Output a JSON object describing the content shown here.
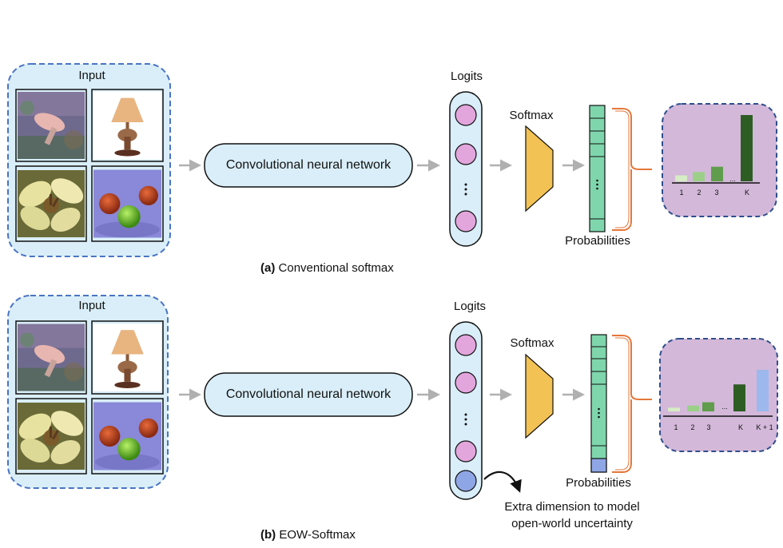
{
  "panel_a": {
    "input_label": "Input",
    "cnn_label": "Convolutional neural network",
    "logits_label": "Logits",
    "softmax_label": "Softmax",
    "probabilities_label": "Probabilities",
    "caption_letter": "(a)",
    "caption_text": "Conventional softmax",
    "bar_ticks": [
      "1",
      "2",
      "3",
      "...",
      "K"
    ],
    "bar_values": [
      0.09,
      0.14,
      0.22,
      1.0
    ],
    "bar_colors": [
      "#d6ecc4",
      "#9cd089",
      "#5f9d4c",
      "#2e5d24"
    ]
  },
  "panel_b": {
    "input_label": "Input",
    "cnn_label": "Convolutional neural network",
    "logits_label": "Logits",
    "softmax_label": "Softmax",
    "probabilities_label": "Probabilities",
    "caption_letter": "(b)",
    "caption_text": "EOW-Softmax",
    "bar_ticks": [
      "1",
      "2",
      "3",
      "...",
      "K",
      "K + 1"
    ],
    "bar_values": [
      0.09,
      0.14,
      0.22,
      0.65,
      1.0
    ],
    "bar_colors": [
      "#d6ecc4",
      "#9cd089",
      "#5f9d4c",
      "#2e5d24",
      "#9cb8ec"
    ],
    "annotation_line1": "Extra dimension to model",
    "annotation_line2": "open-world uncertainty"
  },
  "colors": {
    "input_bg": "#d9eef8",
    "input_border": "#4a74c4",
    "cnn_bg": "#d9eef8",
    "logit_circle": "#e2a6dd",
    "logit_extra": "#8fa6e6",
    "softmax_fill": "#f3c254",
    "prob_cell": "#7fd6ad",
    "prob_extra": "#8fa6e6",
    "chart_bg": "#d3b8d9",
    "arrow": "#b0b0b0",
    "bracket": "#e3773a"
  },
  "icons": [
    "mushroom-thumbnail",
    "lamp-thumbnail",
    "flower-thumbnail",
    "apples-thumbnail"
  ]
}
